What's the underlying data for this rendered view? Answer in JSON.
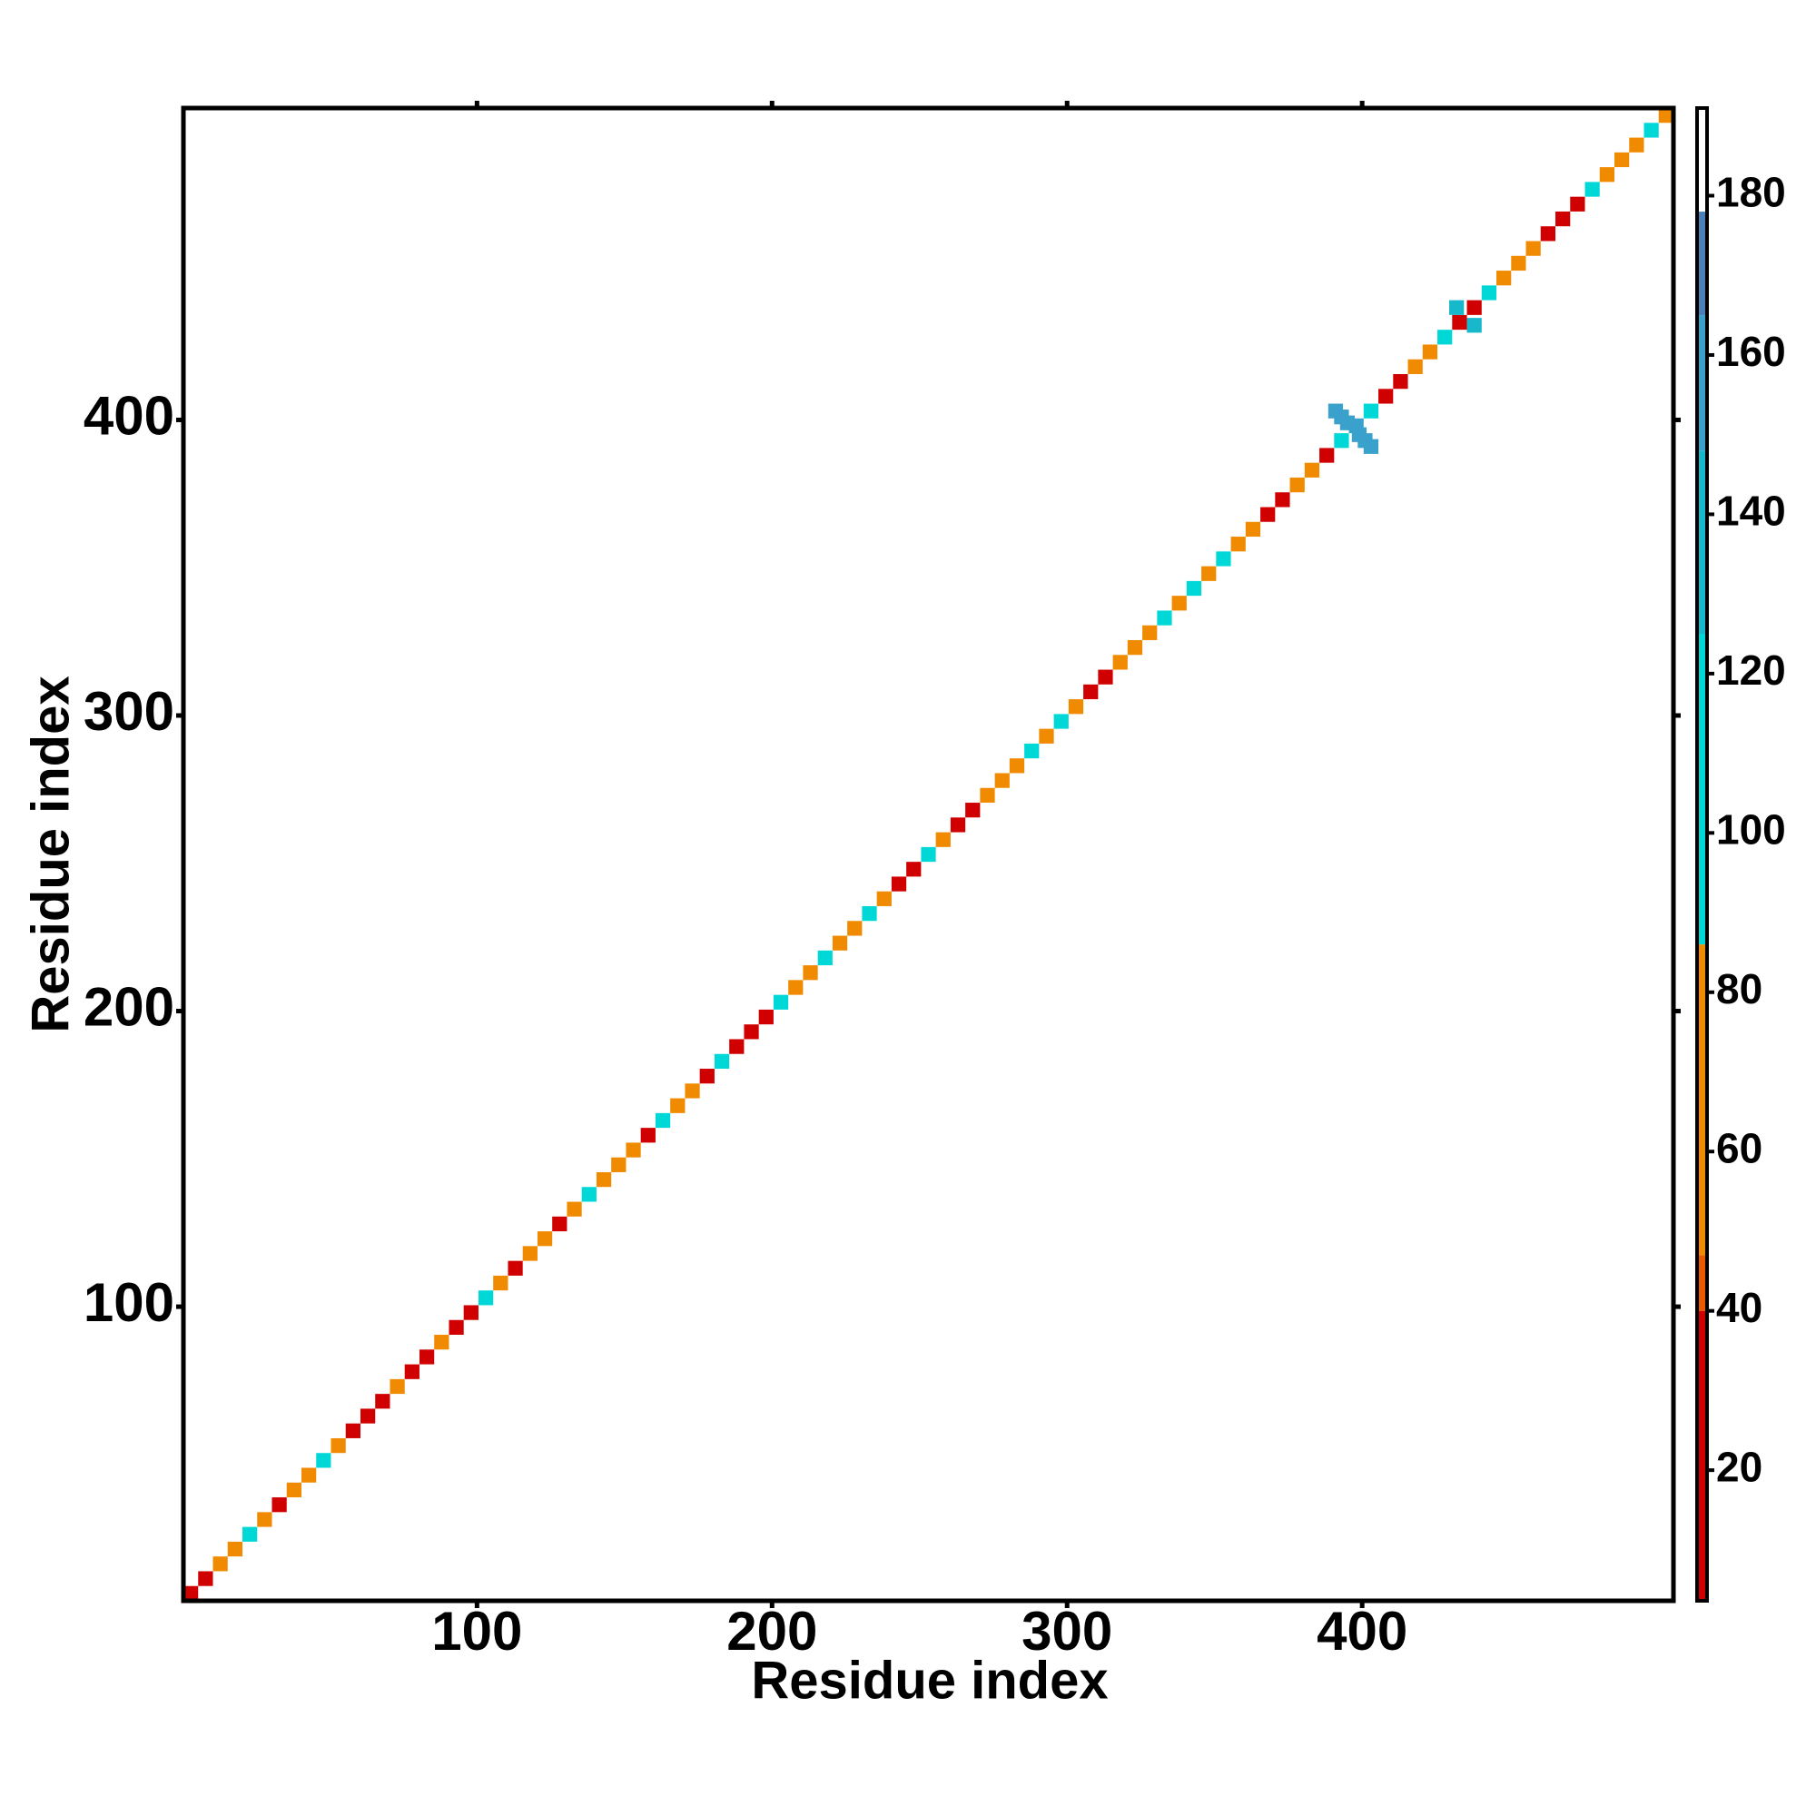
{
  "chart_data": {
    "type": "heatmap",
    "x_label": "Residue index",
    "y_label": "Residue index",
    "xlim": [
      0.5,
      505.5
    ],
    "ylim": [
      0.5,
      505.5
    ],
    "xticks": [
      100,
      200,
      300,
      400
    ],
    "yticks": [
      100,
      200,
      300,
      400
    ],
    "cells": {
      "x": [
        3,
        8,
        13,
        18,
        23,
        28,
        33,
        38,
        43,
        48,
        53,
        58,
        63,
        68,
        73,
        78,
        83,
        88,
        93,
        98,
        103,
        108,
        113,
        118,
        123,
        128,
        133,
        138,
        143,
        148,
        153,
        158,
        163,
        168,
        173,
        178,
        183,
        188,
        193,
        198,
        203,
        208,
        213,
        218,
        223,
        228,
        233,
        238,
        243,
        248,
        253,
        258,
        263,
        268,
        273,
        278,
        283,
        288,
        293,
        298,
        303,
        308,
        313,
        318,
        323,
        328,
        333,
        338,
        343,
        348,
        353,
        358,
        363,
        368,
        373,
        378,
        383,
        388,
        393,
        398,
        403,
        408,
        413,
        418,
        423,
        428,
        433,
        438,
        443,
        448,
        453,
        458,
        463,
        468,
        473,
        478,
        483,
        488,
        493,
        498,
        503,
        391,
        393,
        395,
        399,
        401,
        403,
        432,
        438
      ],
      "y": [
        3,
        8,
        13,
        18,
        23,
        28,
        33,
        38,
        43,
        48,
        53,
        58,
        63,
        68,
        73,
        78,
        83,
        88,
        93,
        98,
        103,
        108,
        113,
        118,
        123,
        128,
        133,
        138,
        143,
        148,
        153,
        158,
        163,
        168,
        173,
        178,
        183,
        188,
        193,
        198,
        203,
        208,
        213,
        218,
        223,
        228,
        233,
        238,
        243,
        248,
        253,
        258,
        263,
        268,
        273,
        278,
        283,
        288,
        293,
        298,
        303,
        308,
        313,
        318,
        323,
        328,
        333,
        338,
        343,
        348,
        353,
        358,
        363,
        368,
        373,
        378,
        383,
        388,
        393,
        398,
        403,
        408,
        413,
        418,
        423,
        428,
        433,
        438,
        443,
        448,
        453,
        458,
        463,
        468,
        473,
        478,
        483,
        488,
        493,
        498,
        503,
        403,
        401,
        399,
        395,
        393,
        391,
        438,
        432
      ],
      "values": [
        15,
        20,
        65,
        70,
        100,
        65,
        15,
        70,
        60,
        100,
        70,
        20,
        25,
        15,
        70,
        20,
        15,
        60,
        20,
        15,
        100,
        60,
        20,
        65,
        70,
        25,
        60,
        100,
        70,
        60,
        65,
        20,
        100,
        70,
        65,
        20,
        100,
        20,
        15,
        20,
        100,
        70,
        65,
        100,
        60,
        65,
        100,
        70,
        25,
        20,
        100,
        65,
        25,
        20,
        70,
        65,
        70,
        100,
        65,
        100,
        65,
        20,
        15,
        65,
        70,
        60,
        100,
        65,
        105,
        60,
        100,
        70,
        65,
        20,
        15,
        65,
        70,
        25,
        110,
        150,
        100,
        20,
        15,
        65,
        60,
        100,
        20,
        15,
        110,
        60,
        65,
        70,
        25,
        20,
        15,
        100,
        70,
        60,
        65,
        100,
        70,
        150,
        150,
        150,
        150,
        150,
        150,
        130,
        130
      ]
    },
    "colorbar": {
      "lim": [
        3.6,
        191
      ],
      "ticks": [
        20,
        40,
        60,
        80,
        100,
        120,
        140,
        160,
        180
      ],
      "stops": [
        {
          "value": 3.6,
          "color": "#d00000"
        },
        {
          "value": 40,
          "color": "#e85a00"
        },
        {
          "value": 47,
          "color": "#f08a00"
        },
        {
          "value": 86,
          "color": "#00d8d8"
        },
        {
          "value": 125,
          "color": "#18b8cc"
        },
        {
          "value": 148,
          "color": "#3aa0cc"
        },
        {
          "value": 165,
          "color": "#4a7fb8"
        },
        {
          "value": 178,
          "color": "#ffffff"
        }
      ]
    }
  }
}
